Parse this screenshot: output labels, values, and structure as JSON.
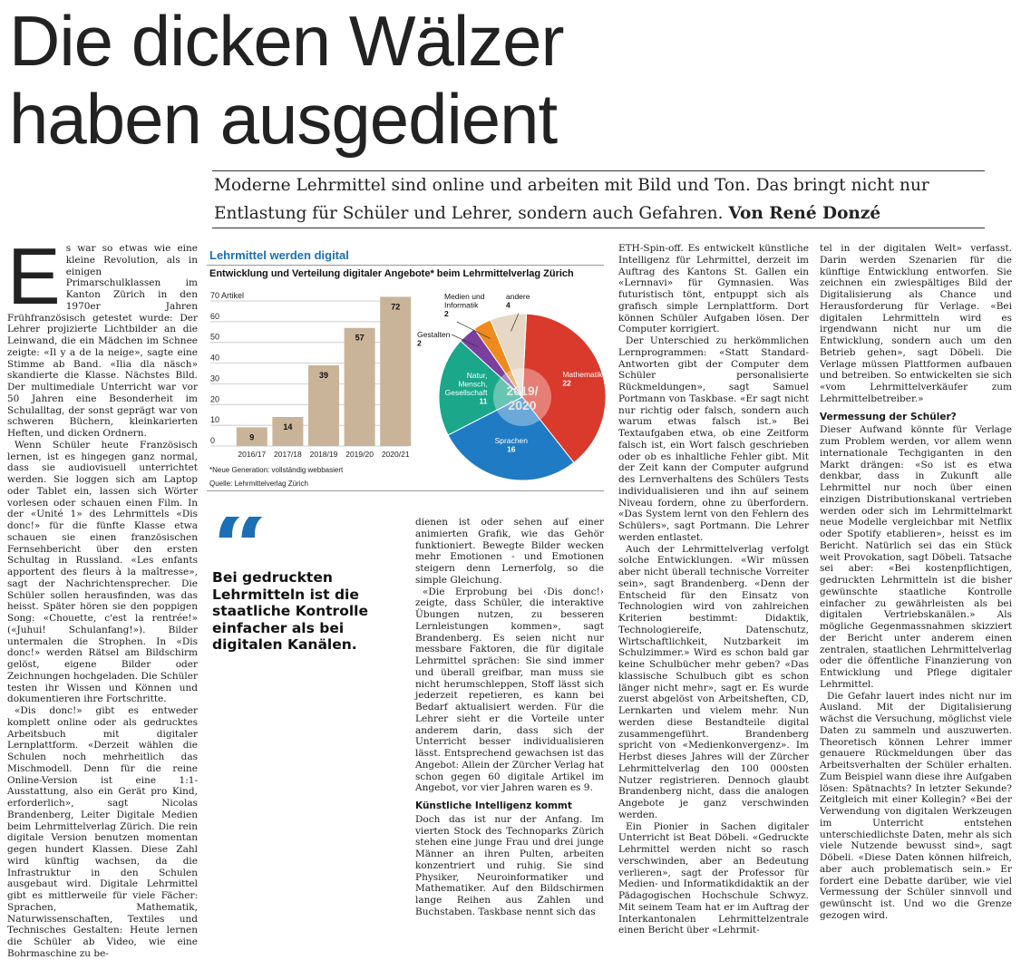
{
  "headline": {
    "line1": "Die dicken Wälzer",
    "line2": "haben ausgedient"
  },
  "subline": {
    "text": "Moderne Lehrmittel sind online und arbeiten mit Bild und Ton. Das bringt nicht nur Entlastung für Schüler und Lehrer, sondern auch Gefahren.",
    "author": "Von René Donzé"
  },
  "article": {
    "dropcap": "E",
    "col1": [
      "s war so etwas wie eine kleine Revolution, als in einigen Primarschulklassen im Kanton Zürich in den 1970er Jahren Frühfranzösisch getestet wurde: Der Lehrer projizierte Lichtbilder an die Leinwand, die ein Mädchen im Schnee zeigte: «Il y a de la neige», sagte eine Stimme ab Band. «Ilia dla näsch» skandierte die Klasse. Nächstes Bild. Der multimediale Unterricht war vor 50 Jahren eine Besonderheit im Schulalltag, der sonst geprägt war von schweren Büchern, kleinkarierten Heften, und dicken Ordnern.",
      "Wenn Schüler heute Französisch lernen, ist es hingegen ganz normal, dass sie audiovisuell unterrichtet werden. Sie loggen sich am Laptop oder Tablet ein, lassen sich Wörter vorlesen oder schauen einen Film. In der «Unité 1» des Lehrmittels «Dis donc!» für die fünfte Klasse etwa schauen sie einen französischen Fernsehbericht über den ersten Schultag in Russland. «Les enfants apportent des fleurs à la maîtresse», sagt der Nachrichtensprecher. Die Schüler sollen herausfinden, was das heisst. Später hören sie den poppigen Song: «Chouette, c'est la rentrée!» («Juhui! Schulanfang!»). Bilder untermalen die Strophen. In «Dis donc!» werden Rätsel am Bildschirm gelöst, eigene Bilder oder Zeichnungen hochgeladen. Die Schüler testen ihr Wissen und Können und dokumentieren ihre Fortschritte.",
      "«Dis donc!» gibt es entweder komplett online oder als gedrucktes Arbeitsbuch mit digitaler Lernplattform. «Derzeit wählen die Schulen noch mehrheitlich das Mischmodell. Denn für die reine Online-Version ist eine 1:1-Ausstattung, also ein Gerät pro Kind, erforderlich», sagt Nicolas Brandenberg, Leiter Digitale Medien beim Lehrmittelverlag Zürich. Die rein digitale Version benutzen momentan gegen hundert Klassen. Diese Zahl wird künftig wachsen, da die Infrastruktur in den Schulen ausgebaut wird. Digitale Lehrmittel gibt es mittlerweile für viele Fächer: Sprachen, Mathematik, Naturwissenschaften, Textiles und Technisches Gestalten: Heute lernen die Schüler ab Video, wie eine Bohrmaschine zu be-"
    ],
    "col2": [
      "dienen ist oder sehen auf einer animierten Grafik, wie das Gehör funktioniert. Bewegte Bilder wecken mehr Emotionen - und Emotionen steigern denn Lernerfolg, so die simple Gleichung.",
      "«Die Erprobung bei ‹Dis donc!› zeigte, dass Schüler, die interaktive Übungen nutzen, zu besseren Lernleistungen kommen», sagt Brandenberg. Es seien nicht nur messbare Faktoren, die für digitale Lehrmittel sprächen: Sie sind immer und überall greifbar, man muss sie nicht herumschleppen, Stoff lässt sich jederzeit repetieren, es kann bei Bedarf aktualisiert werden. Für die Lehrer sieht er die Vorteile unter anderem darin, dass sich der Unterricht besser individualisieren lässt. Entsprechend gewachsen ist das Angebot: Allein der Zürcher Verlag hat schon gegen 60 digitale Artikel im Angebot, vor vier Jahren waren es 9."
    ],
    "col2_heading": "Künstliche Intelligenz kommt",
    "col2b": [
      "Doch das ist nur der Anfang. Im vierten Stock des Technoparks Zürich stehen eine junge Frau und drei junge Männer an ihren Pulten, arbeiten konzentriert und ruhig. Sie sind Physiker, Neuroinformatiker und Mathematiker. Auf den Bildschirmen lange Reihen aus Zahlen und Buchstaben. Taskbase nennt sich das"
    ],
    "col3": [
      "ETH-Spin-off. Es entwickelt künstliche Intelligenz für Lehrmittel, derzeit im Auftrag des Kantons St. Gallen ein «Lernnavi» für Gymnasien. Was futuristisch tönt, entpuppt sich als grafisch simple Lernplattform. Dort können Schüler Aufgaben lösen. Der Computer korrigiert.",
      "Der Unterschied zu herkömmlichen Lernprogrammen: «Statt Standard-Antworten gibt der Computer dem Schüler personalisierte Rückmeldungen», sagt Samuel Portmann von Taskbase. «Er sagt nicht nur richtig oder falsch, sondern auch warum etwas falsch ist.» Bei Textaufgaben etwa, ob eine Zeitform falsch ist, ein Wort falsch geschrieben oder ob es inhaltliche Fehler gibt. Mit der Zeit kann der Computer aufgrund des Lernverhaltens des Schülers Tests individualisieren und ihn auf seinem Niveau fordern, ohne zu überfordern. «Das System lernt von den Fehlern des Schülers», sagt Portmann. Die Lehrer werden entlastet.",
      "Auch der Lehrmittelverlag verfolgt solche Entwicklungen. «Wir müssen aber nicht überall technische Vorreiter sein», sagt Brandenberg. «Denn der Entscheid für den Einsatz von Technologien wird von zahlreichen Kriterien bestimmt: Didaktik, Technologiereife, Datenschutz, Wirtschaftlichkeit, Nutzbarkeit im Schulzimmer.» Wird es schon bald gar keine Schulbücher mehr geben? «Das klassische Schulbuch gibt es schon länger nicht mehr», sagt er. Es wurde zuerst abgelöst von Arbeitsheften, CD, Lernkarten und vielem mehr. Nun werden diese Bestandteile digital zusammengeführt. Brandenberg spricht von «Medienkonvergenz». Im Herbst dieses Jahres will der Zürcher Lehrmittelverlag den 100 000sten Nutzer registrieren. Dennoch glaubt Brandenberg nicht, dass die analogen Angebote je ganz verschwinden werden.",
      "Ein Pionier in Sachen digitaler Unterricht ist Beat Döbeli. «Gedruckte Lehrmittel werden nicht so rasch verschwinden, aber an Bedeutung verlieren», sagt der Professor für Medien- und Informatikdidaktik an der Pädagogischen Hochschule Schwyz. Mit seinem Team hat er im Auftrag der Interkantonalen Lehrmittelzentrale einen Bericht über «Lehrmit-"
    ],
    "col4": [
      "tel in der digitalen Welt» verfasst. Darin werden Szenarien für die künftige Entwicklung entworfen. Sie zeichnen ein zwiespältiges Bild der Digitalisierung als Chance und Herausforderung für Verlage. «Bei digitalen Lehrmitteln wird es irgendwann nicht nur um die Entwicklung, sondern auch um den Betrieb gehen», sagt Döbeli. Die Verlage müssen Plattformen aufbauen und betreiben. So entwickelten sie sich «vom Lehrmittelverkäufer zum Lehrmittelbetreiber.»"
    ],
    "col4_heading": "Vermessung der Schüler?",
    "col4b": [
      "Dieser Aufwand könnte für Verlage zum Problem werden, vor allem wenn internationale Techgiganten in den Markt drängen: «So ist es etwa denkbar, dass in Zukunft alle Lehrmittel nur noch über einen einzigen Distributionskanal vertrieben werden oder sich im Lehrmittelmarkt neue Modelle vergleichbar mit Netflix oder Spotify etablieren», heisst es im Bericht. Natürlich sei das ein Stück weit Provokation, sagt Döbeli. Tatsache sei aber: «Bei kostenpflichtigen, gedruckten Lehrmitteln ist die bisher gewünschte staatliche Kontrolle einfacher zu gewährleisten als bei digitalen Vertriebskanälen.» Als mögliche Gegenmassnahmen skizziert der Bericht unter anderem einen zentralen, staatlichen Lehrmittelverlag oder die öffentliche Finanzierung von Entwicklung und Pflege digitaler Lehrmittel.",
      "Die Gefahr lauert indes nicht nur im Ausland. Mit der Digitalisierung wächst die Versuchung, möglichst viele Daten zu sammeln und auszuwerten. Theoretisch können Lehrer immer genauere Rückmeldungen über das Arbeitsverhalten der Schüler erhalten. Zum Beispiel wann diese ihre Aufgaben lösen: Spätnachts? In letzter Sekunde? Zeitgleich mit einer Kollegin? «Bei der Verwendung von digitalen Werkzeugen im Unterricht entstehen unterschiedlichste Daten, mehr als sich viele Nutzende bewusst sind», sagt Döbeli. «Diese Daten können hilfreich, aber auch problematisch sein.» Er fordert eine Debatte darüber, wie viel Vermessung der Schüler sinnvoll und gewünscht ist. Und wo die Grenze gezogen wird."
    ]
  },
  "quote": {
    "mark": "“",
    "text": "Bei gedruckten Lehrmitteln ist die staatliche Kontrolle einfacher als bei digitalen Kanälen."
  },
  "chart": {
    "title": "Lehrmittel werden digital",
    "subtitle": "Entwicklung und Verteilung digitaler Angebote* beim Lehrmittelverlag Zürich",
    "note": "*Neue Generation: vollständig webbasiert",
    "source": "Quelle: Lehrmittelverlag Zürich"
  },
  "chart_data": [
    {
      "type": "bar",
      "categories": [
        "2016/17",
        "2017/18",
        "2018/19",
        "2019/20",
        "2020/21"
      ],
      "values": [
        9,
        14,
        39,
        57,
        72
      ],
      "ylabel": "Artikel",
      "yticks": [
        0,
        10,
        20,
        30,
        40,
        50,
        60,
        70
      ],
      "ylim": [
        0,
        70
      ],
      "grid": true,
      "colors": {
        "bar": "#c9b49a",
        "grid": "#bbbbbb"
      }
    },
    {
      "type": "pie",
      "center_label": "2019/\n2020",
      "slices": [
        {
          "label": "Mathematik",
          "value": 22,
          "color": "#d93a2b"
        },
        {
          "label": "Sprachen",
          "value": 16,
          "color": "#1f7bc4"
        },
        {
          "label": "Natur, Mensch, Gesellschaft",
          "value": 11,
          "color": "#1aa78a"
        },
        {
          "label": "Gestalten",
          "value": 2,
          "color": "#7b3fa0"
        },
        {
          "label": "Medien und Informatik",
          "value": 2,
          "color": "#f08a1c"
        },
        {
          "label": "andere",
          "value": 4,
          "color": "#e6d8c5"
        }
      ]
    }
  ]
}
